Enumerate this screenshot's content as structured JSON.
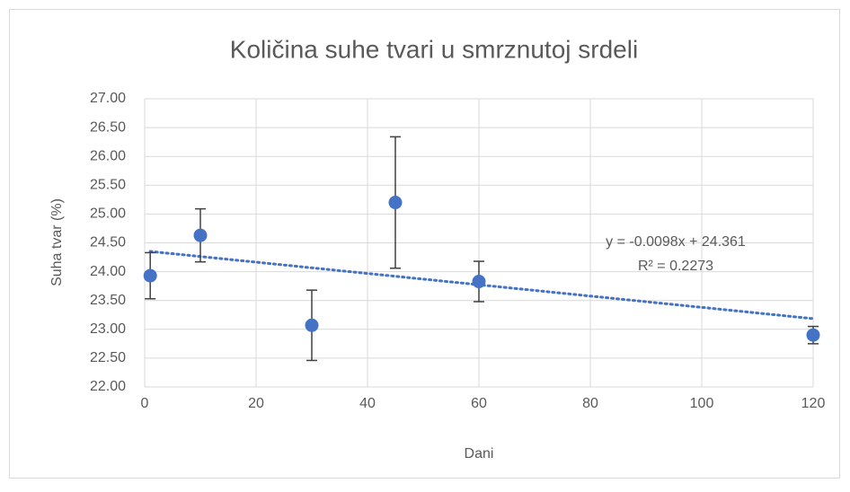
{
  "chart_data": {
    "type": "scatter",
    "title": "Količina suhe tvari u smrznutoj srdeli",
    "x_label": "Dani",
    "y_label": "Suha tvar (%)",
    "x": [
      1,
      10,
      30,
      45,
      60,
      120
    ],
    "values": [
      23.93,
      24.63,
      23.07,
      25.2,
      23.83,
      22.9
    ],
    "errors": [
      0.4,
      0.46,
      0.61,
      1.14,
      0.35,
      0.15
    ],
    "color": "#4472c4",
    "xlim": [
      0,
      120
    ],
    "xticks": [
      0,
      20,
      40,
      60,
      80,
      100,
      120
    ],
    "ylim": [
      22,
      27
    ],
    "yticks": [
      {
        "value": 22,
        "label": "22.00"
      },
      {
        "value": 22.5,
        "label": "22.50"
      },
      {
        "value": 23,
        "label": "23.00"
      },
      {
        "value": 23.5,
        "label": "23.50"
      },
      {
        "value": 24,
        "label": "24.00"
      },
      {
        "value": 24.5,
        "label": "24.50"
      },
      {
        "value": 25,
        "label": "25.00"
      },
      {
        "value": 25.5,
        "label": "25.50"
      },
      {
        "value": 26,
        "label": "26.00"
      },
      {
        "value": 26.5,
        "label": "26.50"
      },
      {
        "value": 27,
        "label": "27.00"
      }
    ],
    "grid": true,
    "trendline": {
      "slope": -0.0098,
      "intercept": 24.361,
      "equation": "y = -0.0098x + 24.361",
      "r_squared": "R² = 0.2273"
    }
  }
}
